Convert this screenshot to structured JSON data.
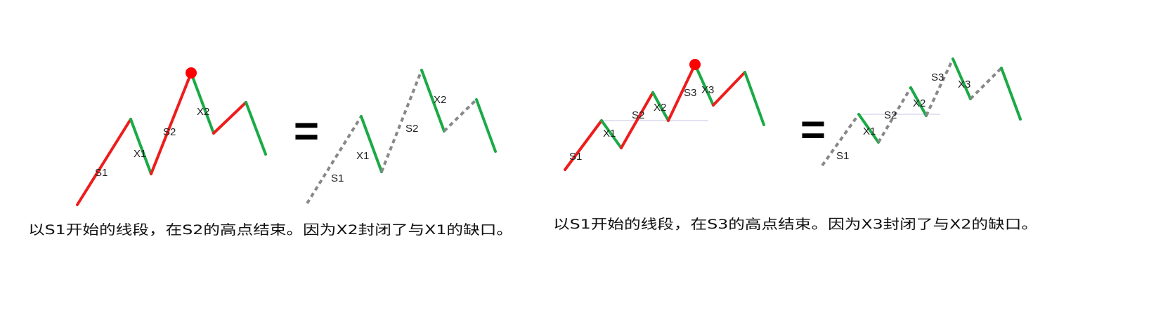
{
  "colors": {
    "up": "#ee1c1c",
    "down": "#1aaa46",
    "dashed": "#888888",
    "peak_marker": "#ff0000",
    "gap_line": "#d8d8ee",
    "text": "#111111"
  },
  "panel_left": {
    "caption": "以S1开始的线段，在S2的高点结束。因为X2封闭了与X1的缺口。",
    "equals": "=",
    "labels": {
      "a_s1": "S1",
      "a_x1": "X1",
      "a_s2": "S2",
      "a_x2": "X2",
      "b_s1": "S1",
      "b_x1": "X1",
      "b_s2": "S2",
      "b_x2": "X2"
    }
  },
  "panel_right": {
    "caption": "以S1开始的线段，在S3的高点结束。因为X3封闭了与X2的缺口。",
    "equals": "=",
    "labels": {
      "a_s1": "S1",
      "a_x1": "X1",
      "a_s2": "S2",
      "a_x2": "X2",
      "a_s3": "S3",
      "a_x3": "X3",
      "b_s1": "S1",
      "b_x1": "X1",
      "b_s2": "S2",
      "b_x2": "X2",
      "b_s3": "S3",
      "b_x3": "X3"
    }
  }
}
